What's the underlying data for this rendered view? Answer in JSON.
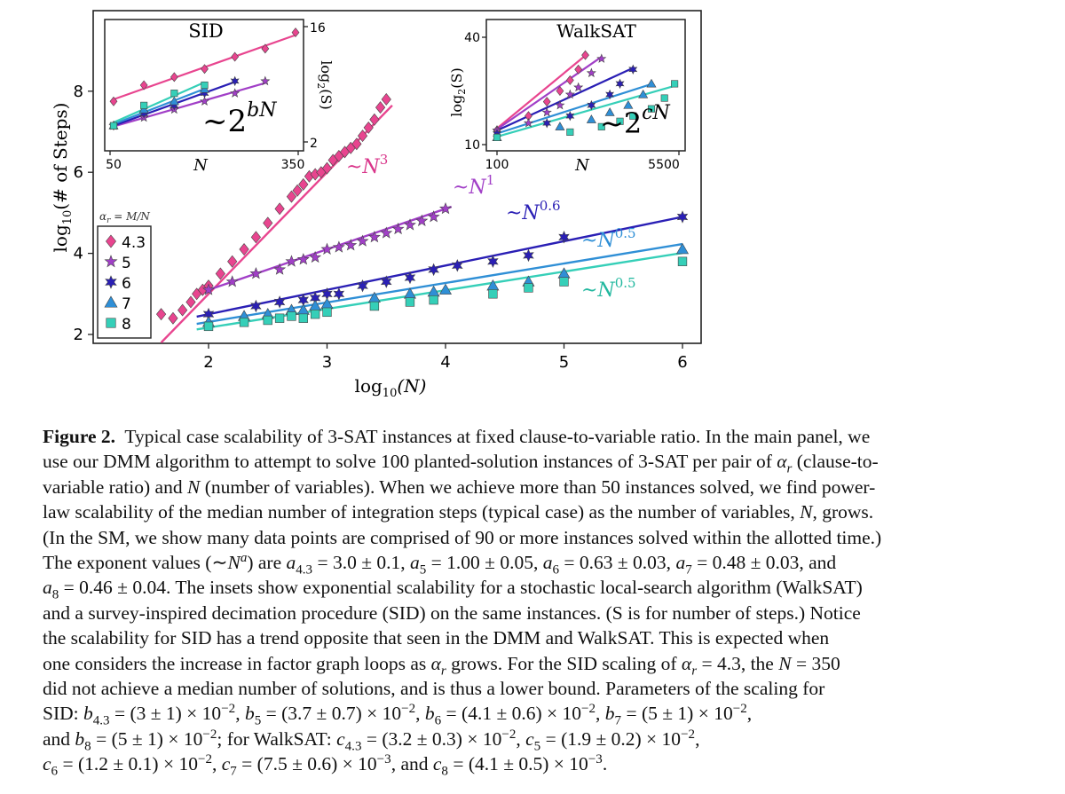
{
  "figure": {
    "main": {
      "xlabel": "log",
      "xlabel_sub": "10",
      "xlabel_arg": "(N)",
      "ylabel": "log",
      "ylabel_sub": "10",
      "ylabel_arg": "(# of Steps)",
      "x_ticks": [
        "2",
        "3",
        "4",
        "5",
        "6"
      ],
      "y_ticks": [
        "2",
        "4",
        "6",
        "8"
      ],
      "legend_title": "α",
      "legend_title_sub": "r",
      "legend_title_rest": " = M/N",
      "legend": [
        {
          "label": "4.3",
          "color": "#e8458f",
          "marker": "diamond"
        },
        {
          "label": "5",
          "color": "#a13fc7",
          "marker": "star"
        },
        {
          "label": "6",
          "color": "#2a1fb5",
          "marker": "star6"
        },
        {
          "label": "7",
          "color": "#2f8fd6",
          "marker": "triangle"
        },
        {
          "label": "8",
          "color": "#35cfb8",
          "marker": "square"
        }
      ],
      "annotations": [
        {
          "base": "~N",
          "exp": "3",
          "color": "#d9358a"
        },
        {
          "base": "~N",
          "exp": "1",
          "color": "#a13fc7"
        },
        {
          "base": "~N",
          "exp": "0.6",
          "color": "#2a1fb5"
        },
        {
          "base": "~N",
          "exp": "0.5",
          "color": "#2f8fd6"
        },
        {
          "base": "~N",
          "exp": "0.5",
          "color": "#22b89f"
        }
      ]
    },
    "inset_sid": {
      "title": "SID",
      "xlabel": "N",
      "x_ticks": [
        "50",
        "350"
      ],
      "y_ticks": [
        "16",
        "2"
      ],
      "ylabel": "log",
      "ylabel_sub": "2",
      "ylabel_arg": "(S)",
      "scaling_base": "~2",
      "scaling_exp": "bN"
    },
    "inset_walksat": {
      "title": "WalkSAT",
      "xlabel": "N",
      "x_ticks": [
        "100",
        "5500"
      ],
      "y_ticks": [
        "40",
        "10"
      ],
      "ylabel": "log",
      "ylabel_sub": "2",
      "ylabel_arg": "(S)",
      "scaling_base": "~2",
      "scaling_exp": "cN"
    }
  },
  "chart_data": {
    "type": "scatter",
    "title": "",
    "xlabel": "log10(N)",
    "ylabel": "log10(# of Steps)",
    "xlim": [
      1.3,
      6.2
    ],
    "ylim": [
      1.8,
      9.9
    ],
    "series": [
      {
        "name": "4.3",
        "fit_exponent": 3,
        "fit_intercept": -3.0,
        "x": [
          1.6,
          1.7,
          1.78,
          1.85,
          1.9,
          1.95,
          2.0,
          2.1,
          2.2,
          2.3,
          2.4,
          2.5,
          2.6,
          2.7,
          2.75,
          2.8,
          2.85,
          2.9,
          2.95,
          3.0,
          3.05,
          3.1,
          3.15,
          3.2,
          3.25,
          3.3,
          3.35,
          3.4,
          3.45,
          3.5
        ],
        "y": [
          2.5,
          2.4,
          2.6,
          2.8,
          3.0,
          3.1,
          3.2,
          3.5,
          3.8,
          4.1,
          4.4,
          4.75,
          5.1,
          5.4,
          5.55,
          5.7,
          5.9,
          5.95,
          6.0,
          6.1,
          6.3,
          6.4,
          6.5,
          6.6,
          6.7,
          6.9,
          7.1,
          7.3,
          7.6,
          7.8
        ]
      },
      {
        "name": "5",
        "fit_exponent": 1,
        "fit_intercept": 1.1,
        "x": [
          2.0,
          2.2,
          2.4,
          2.6,
          2.7,
          2.8,
          2.9,
          3.0,
          3.1,
          3.2,
          3.3,
          3.4,
          3.5,
          3.6,
          3.7,
          3.8,
          3.9,
          4.0
        ],
        "y": [
          3.1,
          3.3,
          3.5,
          3.6,
          3.8,
          3.85,
          3.9,
          4.1,
          4.15,
          4.2,
          4.3,
          4.4,
          4.5,
          4.6,
          4.7,
          4.8,
          4.9,
          5.1
        ]
      },
      {
        "name": "6",
        "fit_exponent": 0.6,
        "fit_intercept": 1.3,
        "x": [
          2.0,
          2.4,
          2.6,
          2.8,
          2.9,
          3.0,
          3.1,
          3.3,
          3.5,
          3.7,
          3.9,
          4.1,
          4.4,
          4.7,
          5.0,
          6.0
        ],
        "y": [
          2.5,
          2.7,
          2.8,
          2.85,
          2.9,
          3.0,
          3.0,
          3.2,
          3.3,
          3.4,
          3.6,
          3.7,
          3.8,
          3.95,
          4.4,
          4.9
        ]
      },
      {
        "name": "7",
        "fit_exponent": 0.48,
        "fit_intercept": 1.35,
        "x": [
          2.0,
          2.3,
          2.5,
          2.7,
          2.8,
          2.9,
          3.0,
          3.4,
          3.7,
          3.9,
          4.0,
          4.4,
          4.7,
          5.0,
          6.0
        ],
        "y": [
          2.3,
          2.45,
          2.5,
          2.6,
          2.6,
          2.7,
          2.75,
          2.9,
          3.0,
          3.05,
          3.1,
          3.2,
          3.3,
          3.5,
          4.1
        ]
      },
      {
        "name": "8",
        "fit_exponent": 0.46,
        "fit_intercept": 1.25,
        "x": [
          2.0,
          2.3,
          2.5,
          2.6,
          2.7,
          2.8,
          2.9,
          3.0,
          3.4,
          3.7,
          3.9,
          4.4,
          4.7,
          5.0,
          6.0
        ],
        "y": [
          2.2,
          2.3,
          2.35,
          2.4,
          2.45,
          2.4,
          2.5,
          2.55,
          2.7,
          2.8,
          2.85,
          3.0,
          3.15,
          3.3,
          3.8
        ]
      }
    ],
    "insets": [
      {
        "type": "scatter",
        "name": "SID",
        "xlim": [
          50,
          350
        ],
        "ylim": [
          2,
          16
        ],
        "series": [
          {
            "name": "4.3",
            "x": [
              50,
              100,
              150,
              200,
              250,
              300,
              350
            ],
            "y": [
              7,
              9,
              10,
              11,
              12.5,
              13.5,
              15.5
            ]
          },
          {
            "name": "5",
            "x": [
              50,
              100,
              150,
              200,
              250,
              300
            ],
            "y": [
              4,
              5,
              6,
              7,
              8,
              9.5
            ]
          },
          {
            "name": "6",
            "x": [
              50,
              100,
              150,
              200,
              250
            ],
            "y": [
              4,
              5.5,
              6.5,
              8,
              9.5
            ]
          },
          {
            "name": "7",
            "x": [
              50,
              100,
              150,
              200
            ],
            "y": [
              4,
              6,
              7,
              8.5
            ]
          },
          {
            "name": "8",
            "x": [
              50,
              100,
              150,
              200
            ],
            "y": [
              4,
              6.5,
              8,
              9
            ]
          }
        ]
      },
      {
        "type": "scatter",
        "name": "WalkSAT",
        "xlim": [
          100,
          5500
        ],
        "ylim": [
          10,
          40
        ],
        "series": [
          {
            "name": "4.3",
            "x": [
              100,
              200,
              300,
              400,
              500,
              600,
              700
            ],
            "y": [
              14,
              18,
              22,
              25,
              28,
              31,
              35
            ]
          },
          {
            "name": "5",
            "x": [
              100,
              200,
              300,
              400,
              500,
              600,
              800,
              1000
            ],
            "y": [
              14,
              16,
              19,
              21,
              24,
              26,
              30,
              34
            ]
          },
          {
            "name": "6",
            "x": [
              100,
              300,
              500,
              800,
              1200,
              1500,
              2000
            ],
            "y": [
              13,
              16,
              18,
              21,
              24,
              27,
              31
            ]
          },
          {
            "name": "7",
            "x": [
              100,
              400,
              800,
              1200,
              1800,
              2500,
              3000
            ],
            "y": [
              12,
              15,
              17,
              19,
              21,
              24,
              27
            ]
          },
          {
            "name": "8",
            "x": [
              100,
              500,
              1000,
              1500,
              2000,
              3000,
              4000,
              5000
            ],
            "y": [
              12,
              13.5,
              15,
              16.5,
              18,
              20,
              23,
              27
            ]
          }
        ]
      }
    ]
  },
  "caption": {
    "lines": [
      {
        "html": "<b>Figure 2.</b>&nbsp; Typical case scalability of 3-SAT instances at fixed clause-to-variable ratio. In the main panel, we"
      },
      {
        "html": "use our DMM algorithm to attempt to solve 100 planted-solution instances of 3-SAT per pair of <i>α<sub>r</sub></i> (clause-to-"
      },
      {
        "html": "variable ratio) and <i>N</i> (number of variables). When we achieve more than 50 instances solved, we find power-"
      },
      {
        "html": "law scalability of the median number of integration steps (typical case) as the number of variables, <i>N</i>, grows."
      },
      {
        "html": "(In the SM, we show many data points are comprised of 90 or more instances solved within the allotted time.)"
      },
      {
        "html": "The exponent values (∼<i>N<sup>a</sup></i>) are <i>a</i><sub>4.3</sub> = 3.0 ± 0.1, <i>a</i><sub>5</sub> = 1.00 ± 0.05, <i>a</i><sub>6</sub> = 0.63 ± 0.03, <i>a</i><sub>7</sub> = 0.48 ± 0.03, and"
      },
      {
        "html": "<i>a</i><sub>8</sub> = 0.46 ± 0.04. The insets show exponential scalability for a stochastic local-search algorithm (WalkSAT)"
      },
      {
        "html": "and a survey-inspired decimation procedure (SID) on the same instances. (S is for number of steps.) Notice"
      },
      {
        "html": "the scalability for SID has a trend opposite that seen in the DMM and WalkSAT. This is expected when"
      },
      {
        "html": "one considers the increase in factor graph loops as <i>α<sub>r</sub></i> grows. For the SID scaling of <i>α<sub>r</sub></i> = 4.3, the <i>N</i> = 350"
      },
      {
        "html": "did not achieve a median number of solutions, and is thus a lower bound. Parameters of the scaling for"
      },
      {
        "html": "SID: <i>b</i><sub>4.3</sub> = (3 ± 1) × 10<sup>−2</sup>, <i>b</i><sub>5</sub> = (3.7 ± 0.7) × 10<sup>−2</sup>, <i>b</i><sub>6</sub> = (4.1 ± 0.6) × 10<sup>−2</sup>, <i>b</i><sub>7</sub> = (5 ± 1) × 10<sup>−2</sup>,"
      },
      {
        "html": "and <i>b</i><sub>8</sub> = (5 ± 1) × 10<sup>−2</sup>; for WalkSAT: <i>c</i><sub>4.3</sub> = (3.2 ± 0.3) × 10<sup>−2</sup>, <i>c</i><sub>5</sub> = (1.9 ± 0.2) × 10<sup>−2</sup>,"
      },
      {
        "html": "<i>c</i><sub>6</sub> = (1.2 ± 0.1) × 10<sup>−2</sup>, <i>c</i><sub>7</sub> = (7.5 ± 0.6) × 10<sup>−3</sup>, and <i>c</i><sub>8</sub> = (4.1 ± 0.5) × 10<sup>−3</sup>."
      }
    ]
  }
}
